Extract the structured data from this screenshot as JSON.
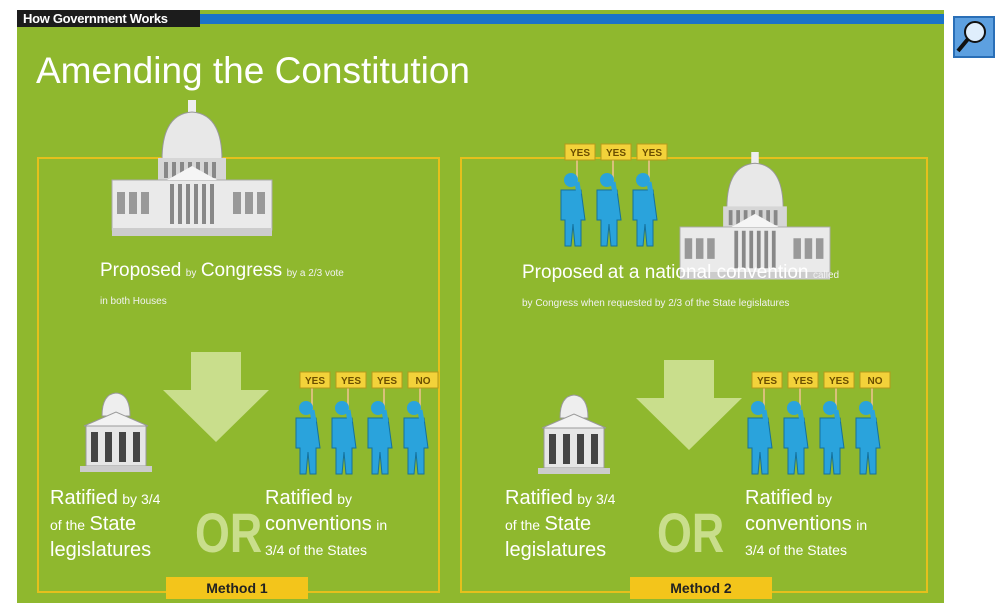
{
  "header": {
    "tab": "How Government Works",
    "title": "Amending the Constitution"
  },
  "methods": [
    {
      "label": "Method 1",
      "proposed": [
        "Proposed",
        "by",
        "Congress",
        "by a 2/3 vote in both Houses"
      ],
      "signs": [
        "YES",
        "YES",
        "YES",
        "NO"
      ],
      "ratified_state": [
        "Ratified",
        "by 3/4",
        "of the",
        "State",
        "legislatures"
      ],
      "or": "OR",
      "ratified_conventions": [
        "Ratified",
        "by",
        "conventions",
        "in",
        "3/4 of the States"
      ]
    },
    {
      "label": "Method 2",
      "proposed": [
        "Proposed",
        "at a national convention",
        "called by Congress when requested by 2/3 of the State legislatures"
      ],
      "signs": [
        "YES",
        "YES",
        "YES",
        "NO"
      ],
      "ratified_state": [
        "Ratified",
        "by 3/4",
        "of the",
        "State",
        "legislatures"
      ],
      "or": "OR",
      "ratified_conventions": [
        "Ratified",
        "by",
        "conventions",
        "in",
        "3/4 of the States"
      ]
    }
  ]
}
